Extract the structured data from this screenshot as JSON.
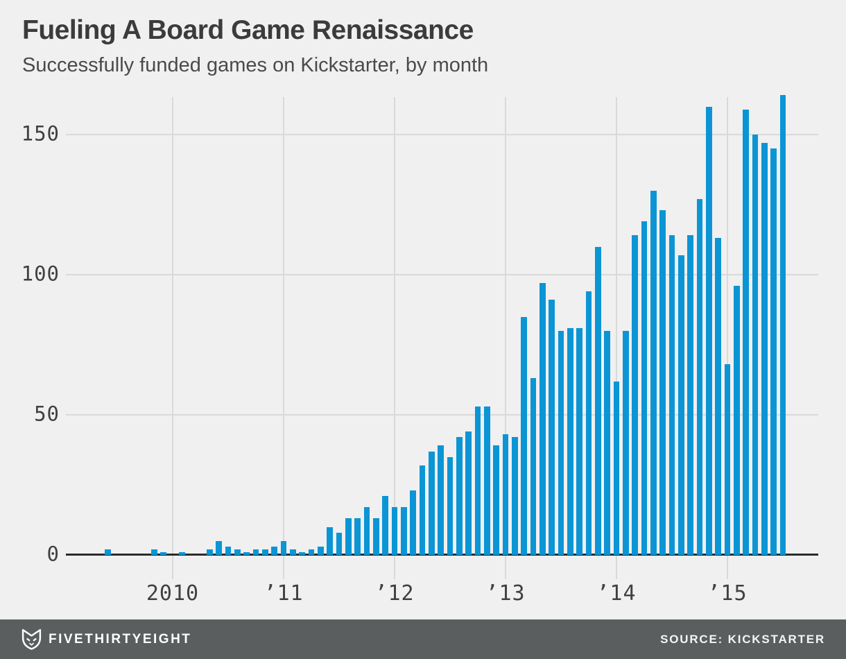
{
  "header": {
    "title": "Fueling A Board Game Renaissance",
    "subtitle": "Successfully funded games on Kickstarter, by month"
  },
  "footer": {
    "brand": "FIVETHIRTYEIGHT",
    "source": "SOURCE: KICKSTARTER",
    "fox_icon": "fivethirtyeight-fox-logo"
  },
  "colors": {
    "background": "#f0f0f0",
    "bar": "#0b95d5",
    "grid": "#d9d9d9",
    "axis": "#2b2b2b",
    "text": "#404040",
    "footer_bg": "#5a5e5f",
    "footer_text": "#ffffff"
  },
  "chart_data": {
    "type": "bar",
    "title": "Fueling A Board Game Renaissance",
    "subtitle": "Successfully funded games on Kickstarter, by month",
    "ylabel": "",
    "xlabel": "",
    "grid": true,
    "legend": false,
    "ylim": [
      0,
      165
    ],
    "y_ticks": [
      0,
      50,
      100,
      150
    ],
    "x_tick_labels": [
      "2010",
      "’11",
      "’12",
      "’13",
      "’14",
      "’15"
    ],
    "x_tick_month_index": [
      7,
      19,
      31,
      43,
      55,
      67
    ],
    "months": [
      "Jun 2009",
      "Jul 2009",
      "Aug 2009",
      "Sep 2009",
      "Oct 2009",
      "Nov 2009",
      "Dec 2009",
      "Jan 2010",
      "Feb 2010",
      "Mar 2010",
      "Apr 2010",
      "May 2010",
      "Jun 2010",
      "Jul 2010",
      "Aug 2010",
      "Sep 2010",
      "Oct 2010",
      "Nov 2010",
      "Dec 2010",
      "Jan 2011",
      "Feb 2011",
      "Mar 2011",
      "Apr 2011",
      "May 2011",
      "Jun 2011",
      "Jul 2011",
      "Aug 2011",
      "Sep 2011",
      "Oct 2011",
      "Nov 2011",
      "Dec 2011",
      "Jan 2012",
      "Feb 2012",
      "Mar 2012",
      "Apr 2012",
      "May 2012",
      "Jun 2012",
      "Jul 2012",
      "Aug 2012",
      "Sep 2012",
      "Oct 2012",
      "Nov 2012",
      "Dec 2012",
      "Jan 2013",
      "Feb 2013",
      "Mar 2013",
      "Apr 2013",
      "May 2013",
      "Jun 2013",
      "Jul 2013",
      "Aug 2013",
      "Sep 2013",
      "Oct 2013",
      "Nov 2013",
      "Dec 2013",
      "Jan 2014",
      "Feb 2014",
      "Mar 2014",
      "Apr 2014",
      "May 2014",
      "Jun 2014",
      "Jul 2014",
      "Aug 2014",
      "Sep 2014",
      "Oct 2014",
      "Nov 2014",
      "Dec 2014",
      "Jan 2015",
      "Feb 2015",
      "Mar 2015",
      "Apr 2015",
      "May 2015",
      "Jun 2015",
      "Jul 2015"
    ],
    "values": [
      2,
      0,
      0,
      0,
      0,
      2,
      1,
      0,
      1,
      0,
      0,
      2,
      5,
      3,
      2,
      1,
      2,
      2,
      3,
      5,
      2,
      1,
      2,
      3,
      10,
      8,
      13,
      13,
      17,
      13,
      21,
      17,
      17,
      23,
      32,
      37,
      39,
      35,
      42,
      44,
      53,
      53,
      39,
      43,
      42,
      85,
      63,
      97,
      91,
      80,
      81,
      81,
      94,
      110,
      80,
      62,
      80,
      114,
      119,
      130,
      123,
      114,
      107,
      114,
      127,
      160,
      113,
      68,
      96,
      159,
      150,
      147,
      145,
      164
    ]
  }
}
